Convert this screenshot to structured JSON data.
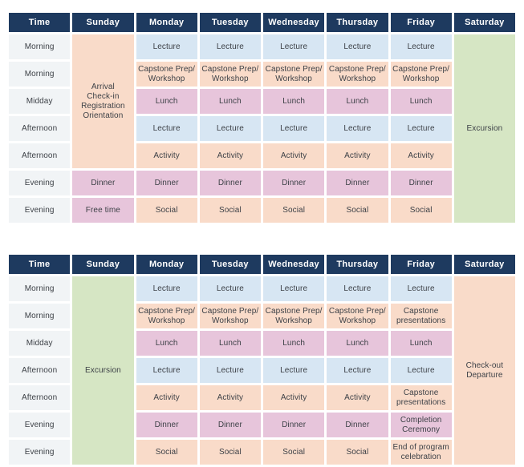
{
  "palette": {
    "header_bg": "#1e3a5f",
    "header_text": "#ffffff",
    "time_bg": "#f1f4f6",
    "blue": "#d7e6f3",
    "peach": "#f9dbc9",
    "pink": "#e7c5db",
    "green": "#d6e6c4",
    "cell_text": "#3d4147",
    "page_bg": "#ffffff"
  },
  "tables": [
    {
      "name": "week-1-schedule",
      "columns": [
        "Time",
        "Sunday",
        "Monday",
        "Tuesday",
        "Wednesday",
        "Thursday",
        "Friday",
        "Saturday"
      ],
      "rows": [
        {
          "time": "Morning",
          "cells": [
            {
              "text": "Arrival\nCheck-in\nRegistration\nOrientation",
              "color": "peach",
              "rowspan": 5
            },
            {
              "text": "Lecture",
              "color": "blue"
            },
            {
              "text": "Lecture",
              "color": "blue"
            },
            {
              "text": "Lecture",
              "color": "blue"
            },
            {
              "text": "Lecture",
              "color": "blue"
            },
            {
              "text": "Lecture",
              "color": "blue"
            },
            {
              "text": "Excursion",
              "color": "green",
              "rowspan": 7
            }
          ]
        },
        {
          "time": "Morning",
          "cells": [
            {
              "text": "Capstone Prep/\nWorkshop",
              "color": "peach"
            },
            {
              "text": "Capstone Prep/\nWorkshop",
              "color": "peach"
            },
            {
              "text": "Capstone Prep/\nWorkshop",
              "color": "peach"
            },
            {
              "text": "Capstone Prep/\nWorkshop",
              "color": "peach"
            },
            {
              "text": "Capstone Prep/\nWorkshop",
              "color": "peach"
            }
          ]
        },
        {
          "time": "Midday",
          "cells": [
            {
              "text": "Lunch",
              "color": "pink"
            },
            {
              "text": "Lunch",
              "color": "pink"
            },
            {
              "text": "Lunch",
              "color": "pink"
            },
            {
              "text": "Lunch",
              "color": "pink"
            },
            {
              "text": "Lunch",
              "color": "pink"
            }
          ]
        },
        {
          "time": "Afternoon",
          "cells": [
            {
              "text": "Lecture",
              "color": "blue"
            },
            {
              "text": "Lecture",
              "color": "blue"
            },
            {
              "text": "Lecture",
              "color": "blue"
            },
            {
              "text": "Lecture",
              "color": "blue"
            },
            {
              "text": "Lecture",
              "color": "blue"
            }
          ]
        },
        {
          "time": "Afternoon",
          "cells": [
            {
              "text": "Activity",
              "color": "peach"
            },
            {
              "text": "Activity",
              "color": "peach"
            },
            {
              "text": "Activity",
              "color": "peach"
            },
            {
              "text": "Activity",
              "color": "peach"
            },
            {
              "text": "Activity",
              "color": "peach"
            }
          ]
        },
        {
          "time": "Evening",
          "cells": [
            {
              "text": "Dinner",
              "color": "pink"
            },
            {
              "text": "Dinner",
              "color": "pink"
            },
            {
              "text": "Dinner",
              "color": "pink"
            },
            {
              "text": "Dinner",
              "color": "pink"
            },
            {
              "text": "Dinner",
              "color": "pink"
            },
            {
              "text": "Dinner",
              "color": "pink"
            }
          ]
        },
        {
          "time": "Evening",
          "cells": [
            {
              "text": "Free time",
              "color": "pink"
            },
            {
              "text": "Social",
              "color": "peach"
            },
            {
              "text": "Social",
              "color": "peach"
            },
            {
              "text": "Social",
              "color": "peach"
            },
            {
              "text": "Social",
              "color": "peach"
            },
            {
              "text": "Social",
              "color": "peach"
            }
          ]
        }
      ]
    },
    {
      "name": "week-2-schedule",
      "columns": [
        "Time",
        "Sunday",
        "Monday",
        "Tuesday",
        "Wednesday",
        "Thursday",
        "Friday",
        "Saturday"
      ],
      "rows": [
        {
          "time": "Morning",
          "cells": [
            {
              "text": "Excursion",
              "color": "green",
              "rowspan": 7
            },
            {
              "text": "Lecture",
              "color": "blue"
            },
            {
              "text": "Lecture",
              "color": "blue"
            },
            {
              "text": "Lecture",
              "color": "blue"
            },
            {
              "text": "Lecture",
              "color": "blue"
            },
            {
              "text": "Lecture",
              "color": "blue"
            },
            {
              "text": "Check-out\nDeparture",
              "color": "peach",
              "rowspan": 7
            }
          ]
        },
        {
          "time": "Morning",
          "cells": [
            {
              "text": "Capstone Prep/\nWorkshop",
              "color": "peach"
            },
            {
              "text": "Capstone Prep/\nWorkshop",
              "color": "peach"
            },
            {
              "text": "Capstone Prep/\nWorkshop",
              "color": "peach"
            },
            {
              "text": "Capstone Prep/\nWorkshop",
              "color": "peach"
            },
            {
              "text": "Capstone\npresentations",
              "color": "peach"
            }
          ]
        },
        {
          "time": "Midday",
          "cells": [
            {
              "text": "Lunch",
              "color": "pink"
            },
            {
              "text": "Lunch",
              "color": "pink"
            },
            {
              "text": "Lunch",
              "color": "pink"
            },
            {
              "text": "Lunch",
              "color": "pink"
            },
            {
              "text": "Lunch",
              "color": "pink"
            }
          ]
        },
        {
          "time": "Afternoon",
          "cells": [
            {
              "text": "Lecture",
              "color": "blue"
            },
            {
              "text": "Lecture",
              "color": "blue"
            },
            {
              "text": "Lecture",
              "color": "blue"
            },
            {
              "text": "Lecture",
              "color": "blue"
            },
            {
              "text": "Lecture",
              "color": "blue"
            }
          ]
        },
        {
          "time": "Afternoon",
          "cells": [
            {
              "text": "Activity",
              "color": "peach"
            },
            {
              "text": "Activity",
              "color": "peach"
            },
            {
              "text": "Activity",
              "color": "peach"
            },
            {
              "text": "Activity",
              "color": "peach"
            },
            {
              "text": "Capstone\npresentations",
              "color": "peach"
            }
          ]
        },
        {
          "time": "Evening",
          "cells": [
            {
              "text": "Dinner",
              "color": "pink"
            },
            {
              "text": "Dinner",
              "color": "pink"
            },
            {
              "text": "Dinner",
              "color": "pink"
            },
            {
              "text": "Dinner",
              "color": "pink"
            },
            {
              "text": "Completion\nCeremony",
              "color": "pink"
            }
          ]
        },
        {
          "time": "Evening",
          "cells": [
            {
              "text": "Social",
              "color": "peach"
            },
            {
              "text": "Social",
              "color": "peach"
            },
            {
              "text": "Social",
              "color": "peach"
            },
            {
              "text": "Social",
              "color": "peach"
            },
            {
              "text": "End of program\ncelebration",
              "color": "peach"
            }
          ]
        }
      ]
    }
  ]
}
